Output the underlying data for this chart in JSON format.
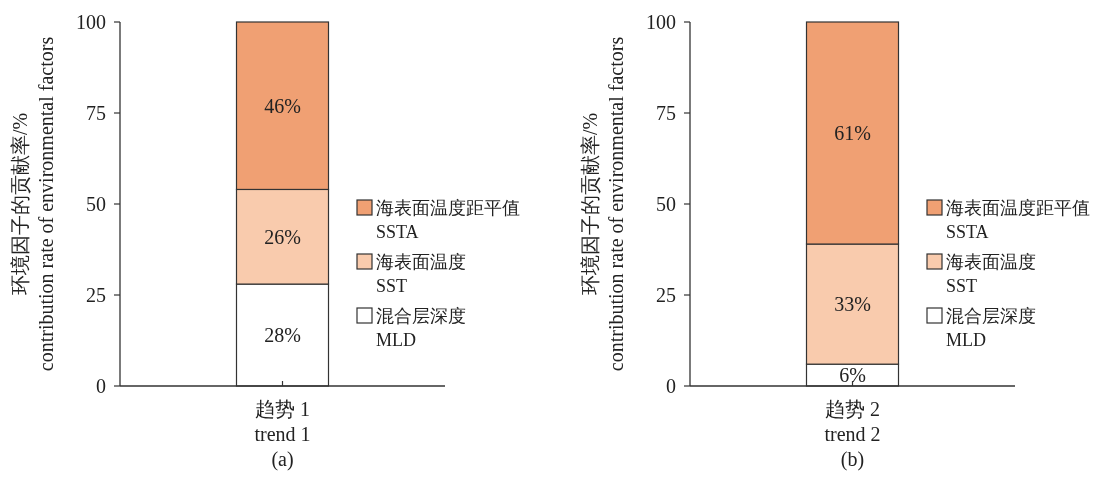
{
  "chart_data": [
    {
      "type": "bar",
      "stacked": true,
      "categories": [
        "趋势 1\ntrend 1"
      ],
      "xlabel": "(a)",
      "ylabel": "环境因子的贡献率/%\ncontribution rate of environmental factors",
      "ylim": [
        0,
        100
      ],
      "yticks": [
        0,
        25,
        50,
        75,
        100
      ],
      "legend": "right",
      "series": [
        {
          "name": "混合层深度\nMLD",
          "color": "#ffffff",
          "values": [
            28
          ],
          "value_labels": [
            "28%"
          ]
        },
        {
          "name": "海表面温度\nSST",
          "color": "#f9cbad",
          "values": [
            26
          ],
          "value_labels": [
            "26%"
          ]
        },
        {
          "name": "海表面温度距平值\nSSTA",
          "color": "#f0a073",
          "values": [
            46
          ],
          "value_labels": [
            "46%"
          ]
        }
      ]
    },
    {
      "type": "bar",
      "stacked": true,
      "categories": [
        "趋势 2\ntrend 2"
      ],
      "xlabel": "(b)",
      "ylabel": "环境因子的贡献率/%\ncontribution rate of environmental factors",
      "ylim": [
        0,
        100
      ],
      "yticks": [
        0,
        25,
        50,
        75,
        100
      ],
      "legend": "right",
      "series": [
        {
          "name": "混合层深度\nMLD",
          "color": "#ffffff",
          "values": [
            6
          ],
          "value_labels": [
            "6%"
          ]
        },
        {
          "name": "海表面温度\nSST",
          "color": "#f9cbad",
          "values": [
            33
          ],
          "value_labels": [
            "33%"
          ]
        },
        {
          "name": "海表面温度距平值\nSSTA",
          "color": "#f0a073",
          "values": [
            61
          ],
          "value_labels": [
            "61%"
          ]
        }
      ]
    }
  ]
}
